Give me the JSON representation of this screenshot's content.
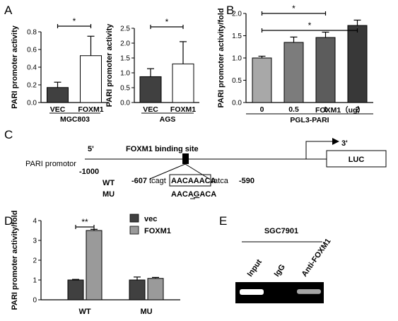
{
  "panel_letters": {
    "a": "A",
    "b": "B",
    "c": "C",
    "d": "D",
    "e": "E"
  },
  "chart_data": [
    {
      "panel": "A",
      "type": "bar",
      "ylabel": "PARI promoter activity",
      "categories": [
        "VEC",
        "FOXM1"
      ],
      "values": [
        0.17,
        0.53
      ],
      "errors": [
        0.06,
        0.22
      ],
      "ylim": [
        0,
        0.8
      ],
      "yticks": [
        "0.0",
        "0.2",
        "0.4",
        "0.6",
        "0.8"
      ],
      "group_label": "MGC803",
      "significance": [
        {
          "from": 0,
          "to": 1,
          "label": "*"
        }
      ],
      "bar_colors": [
        "#404040",
        "#ffffff"
      ]
    },
    {
      "panel": "A",
      "type": "bar",
      "ylabel": "PARI promoter activity",
      "categories": [
        "VEC",
        "FOXM1"
      ],
      "values": [
        0.87,
        1.3
      ],
      "errors": [
        0.27,
        0.75
      ],
      "ylim": [
        0,
        2.5
      ],
      "yticks": [
        "0.0",
        "0.5",
        "1.0",
        "1.5",
        "2.0",
        "2.5"
      ],
      "group_label": "AGS",
      "significance": [
        {
          "from": 0,
          "to": 1,
          "label": "*"
        }
      ],
      "bar_colors": [
        "#404040",
        "#ffffff"
      ]
    },
    {
      "panel": "B",
      "type": "bar",
      "ylabel": "PARI promoter activity/fold",
      "categories": [
        "0",
        "0.5",
        "1",
        "2"
      ],
      "values": [
        1.0,
        1.35,
        1.46,
        1.73
      ],
      "errors": [
        0.04,
        0.12,
        0.12,
        0.12
      ],
      "ylim": [
        0,
        2.0
      ],
      "yticks": [
        "0.0",
        "0.5",
        "1.0",
        "1.5",
        "2.0"
      ],
      "axis_title": "FOXM1（ug）",
      "group_label": "PGL3-PARI",
      "significance": [
        {
          "from": 0,
          "to": 2,
          "label": "*"
        },
        {
          "from": 0,
          "to": 3,
          "label": "*"
        }
      ],
      "bar_colors": [
        "#a8a8a8",
        "#7c7c7c",
        "#5c5c5c",
        "#383838"
      ]
    },
    {
      "panel": "D",
      "type": "bar",
      "ylabel": "PARI promoter activity/fold",
      "categories": [
        "WT",
        "MU"
      ],
      "series": [
        {
          "name": "vec",
          "values": [
            1.0,
            1.0
          ],
          "errors": [
            0.03,
            0.15
          ],
          "color": "#404040"
        },
        {
          "name": "FOXM1",
          "values": [
            3.5,
            1.08
          ],
          "errors": [
            0.06,
            0.05
          ],
          "color": "#9a9a9a"
        }
      ],
      "ylim": [
        0,
        4
      ],
      "yticks": [
        "0",
        "1",
        "2",
        "3",
        "4"
      ],
      "significance": [
        {
          "category": 0,
          "label": "**"
        }
      ],
      "legend": "top-right"
    }
  ],
  "diagram_c": {
    "promoter_label": "PARI promotor",
    "five_prime": "5'",
    "three_prime": "3'",
    "binding_site_label": "FOXM1 binding site",
    "start_position": "-1000",
    "luc_label": "LUC",
    "wt_label": "WT",
    "mu_label": "MU",
    "wt_start": "-607",
    "wt_end": "-590",
    "wt_flank_left": "tcagt",
    "wt_core": "AACAAACA",
    "wt_flank_right": "tatca",
    "mu_part1": "AACA",
    "mu_mut": "G",
    "mu_part2": "ACA"
  },
  "panel_e": {
    "cell_line": "SGC7901",
    "lanes": [
      "Input",
      "IgG",
      "Anti-FOXM1"
    ],
    "band_intensity": [
      1.0,
      0.0,
      0.6
    ]
  }
}
